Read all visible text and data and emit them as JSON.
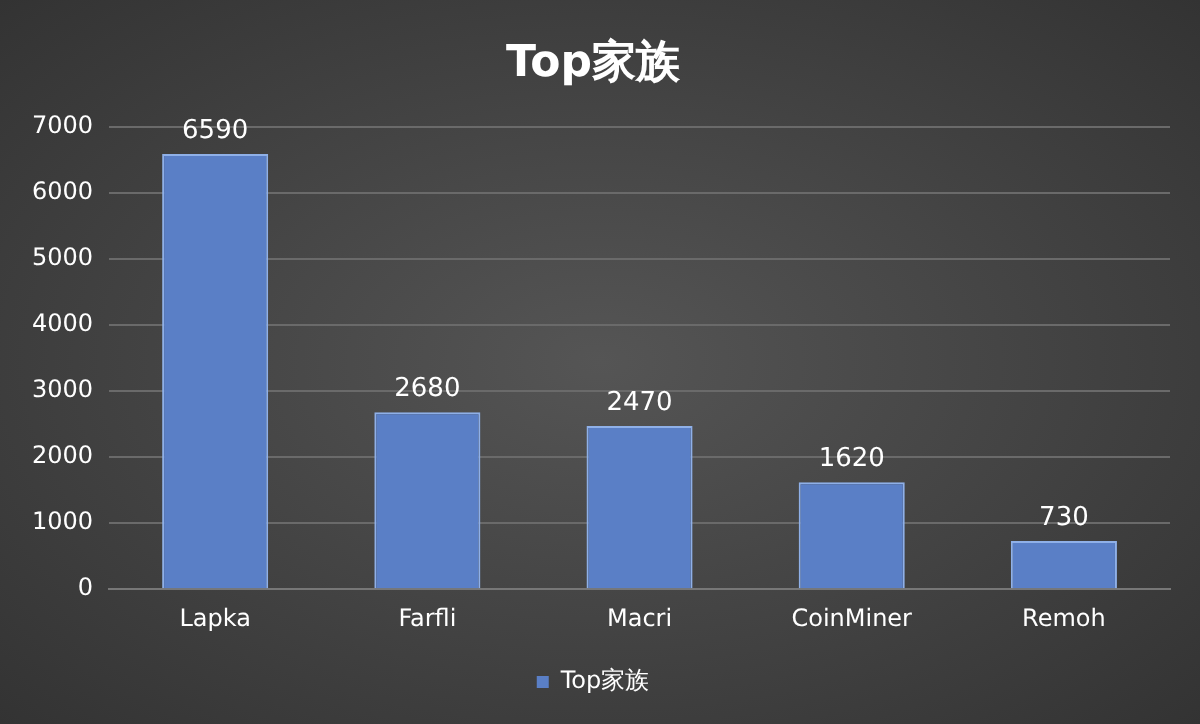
{
  "chart_data": {
    "type": "bar",
    "title": "Top家族",
    "categories": [
      "Lapka",
      "Farfli",
      "Macri",
      "CoinMiner",
      "Remoh"
    ],
    "series": [
      {
        "name": "Top家族",
        "color": "#5a7fc6",
        "values": [
          6590,
          2680,
          2470,
          1620,
          730
        ]
      }
    ],
    "ylim": [
      0,
      7000
    ],
    "yticks": [
      0,
      1000,
      2000,
      3000,
      4000,
      5000,
      6000,
      7000
    ],
    "grid": "y",
    "legend": "bottom",
    "data_labels": true
  }
}
